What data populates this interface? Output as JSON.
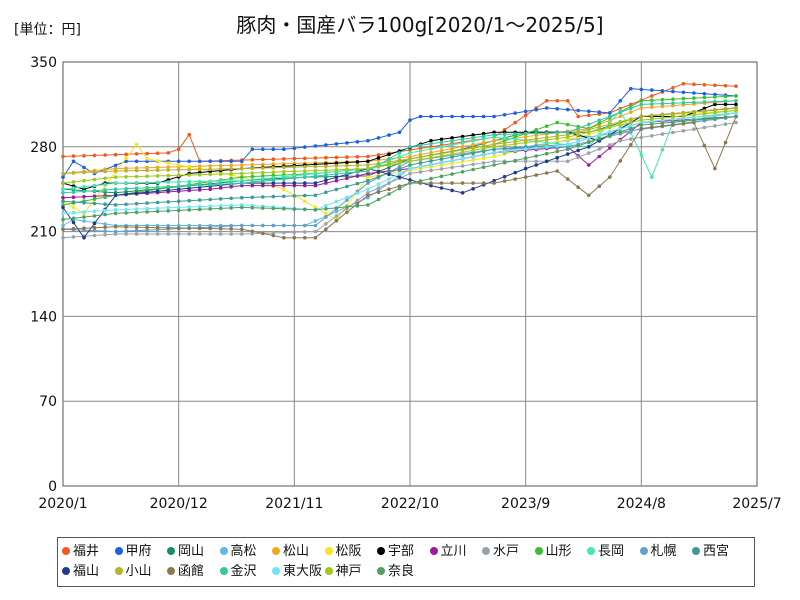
{
  "chart_data": {
    "type": "line",
    "title": "豚肉・国産バラ100g[2020/1～2025/5]",
    "unit_label": "[単位：円]",
    "ylim": [
      0,
      350
    ],
    "yticks": [
      0,
      70,
      140,
      210,
      280,
      350
    ],
    "xlim": [
      "2020-01",
      "2025-07"
    ],
    "xticks": [
      "2020/1",
      "2020/12",
      "2021/11",
      "2022/10",
      "2023/9",
      "2024/8",
      "2025/7"
    ],
    "grid": true,
    "legend_position": "bottom",
    "series": [
      {
        "name": "福井",
        "color": "#f05a1e",
        "points": [
          [
            "2020-01",
            272
          ],
          [
            "2020-11",
            275
          ],
          [
            "2020-12",
            278
          ],
          [
            "2021-01",
            290
          ],
          [
            "2021-02",
            268
          ],
          [
            "2022-06",
            272
          ],
          [
            "2023-06",
            288
          ],
          [
            "2023-11",
            318
          ],
          [
            "2024-01",
            318
          ],
          [
            "2024-02",
            305
          ],
          [
            "2024-05",
            308
          ],
          [
            "2024-09",
            322
          ],
          [
            "2024-12",
            332
          ],
          [
            "2025-05",
            330
          ]
        ]
      },
      {
        "name": "甲府",
        "color": "#1f5fe0",
        "points": [
          [
            "2020-01",
            255
          ],
          [
            "2020-02",
            268
          ],
          [
            "2020-04",
            258
          ],
          [
            "2020-07",
            268
          ],
          [
            "2021-06",
            268
          ],
          [
            "2021-07",
            278
          ],
          [
            "2021-10",
            278
          ],
          [
            "2022-06",
            285
          ],
          [
            "2022-09",
            292
          ],
          [
            "2022-10",
            302
          ],
          [
            "2022-11",
            305
          ],
          [
            "2023-06",
            305
          ],
          [
            "2023-11",
            312
          ],
          [
            "2024-05",
            308
          ],
          [
            "2024-07",
            328
          ],
          [
            "2025-05",
            322
          ]
        ]
      },
      {
        "name": "岡山",
        "color": "#149060",
        "points": [
          [
            "2020-01",
            245
          ],
          [
            "2020-06",
            242
          ],
          [
            "2021-06",
            252
          ],
          [
            "2021-12",
            255
          ],
          [
            "2022-06",
            256
          ],
          [
            "2022-10",
            270
          ],
          [
            "2023-03",
            278
          ],
          [
            "2023-09",
            292
          ],
          [
            "2024-03",
            292
          ],
          [
            "2024-08",
            305
          ],
          [
            "2025-05",
            312
          ]
        ]
      },
      {
        "name": "高松",
        "color": "#62b7e6",
        "points": [
          [
            "2020-01",
            215
          ],
          [
            "2020-02",
            220
          ],
          [
            "2020-06",
            215
          ],
          [
            "2021-02",
            215
          ],
          [
            "2021-12",
            215
          ],
          [
            "2022-06",
            238
          ],
          [
            "2022-10",
            262
          ],
          [
            "2023-09",
            280
          ],
          [
            "2024-06",
            292
          ],
          [
            "2025-05",
            305
          ]
        ]
      },
      {
        "name": "松山",
        "color": "#f5a51e",
        "points": [
          [
            "2020-01",
            258
          ],
          [
            "2020-06",
            262
          ],
          [
            "2021-06",
            265
          ],
          [
            "2022-06",
            268
          ],
          [
            "2022-10",
            272
          ],
          [
            "2023-06",
            285
          ],
          [
            "2024-03",
            295
          ],
          [
            "2024-08",
            312
          ],
          [
            "2025-05",
            318
          ]
        ]
      },
      {
        "name": "松阪",
        "color": "#f5e61e",
        "points": [
          [
            "2020-01",
            235
          ],
          [
            "2020-03",
            225
          ],
          [
            "2020-08",
            282
          ],
          [
            "2020-09",
            270
          ],
          [
            "2021-06",
            255
          ],
          [
            "2021-10",
            245
          ],
          [
            "2022-03",
            220
          ],
          [
            "2022-06",
            255
          ],
          [
            "2023-06",
            272
          ],
          [
            "2024-03",
            290
          ],
          [
            "2024-08",
            305
          ],
          [
            "2025-05",
            310
          ]
        ]
      },
      {
        "name": "宇部",
        "color": "#000000",
        "points": [
          [
            "2020-01",
            250
          ],
          [
            "2020-03",
            245
          ],
          [
            "2020-05",
            250
          ],
          [
            "2020-10",
            250
          ],
          [
            "2021-01",
            258
          ],
          [
            "2021-06",
            262
          ],
          [
            "2022-06",
            268
          ],
          [
            "2022-12",
            285
          ],
          [
            "2023-06",
            292
          ],
          [
            "2024-01",
            292
          ],
          [
            "2024-04",
            285
          ],
          [
            "2024-08",
            305
          ],
          [
            "2024-12",
            305
          ],
          [
            "2025-03",
            315
          ],
          [
            "2025-05",
            315
          ]
        ]
      },
      {
        "name": "立川",
        "color": "#9e1aa0",
        "points": [
          [
            "2020-01",
            238
          ],
          [
            "2020-06",
            240
          ],
          [
            "2021-03",
            245
          ],
          [
            "2021-06",
            248
          ],
          [
            "2022-01",
            248
          ],
          [
            "2022-06",
            258
          ],
          [
            "2022-10",
            262
          ],
          [
            "2023-06",
            275
          ],
          [
            "2024-01",
            280
          ],
          [
            "2024-03",
            265
          ],
          [
            "2024-08",
            300
          ],
          [
            "2025-05",
            305
          ]
        ]
      },
      {
        "name": "水戸",
        "color": "#9aa3ab",
        "points": [
          [
            "2020-01",
            205
          ],
          [
            "2020-06",
            208
          ],
          [
            "2021-06",
            208
          ],
          [
            "2022-01",
            210
          ],
          [
            "2022-06",
            242
          ],
          [
            "2022-10",
            258
          ],
          [
            "2023-06",
            268
          ],
          [
            "2024-01",
            268
          ],
          [
            "2024-06",
            285
          ],
          [
            "2025-05",
            300
          ]
        ]
      },
      {
        "name": "山形",
        "color": "#3cbe32",
        "points": [
          [
            "2020-01",
            232
          ],
          [
            "2020-06",
            240
          ],
          [
            "2021-06",
            255
          ],
          [
            "2022-01",
            258
          ],
          [
            "2022-06",
            262
          ],
          [
            "2022-10",
            270
          ],
          [
            "2023-06",
            282
          ],
          [
            "2023-12",
            300
          ],
          [
            "2024-03",
            295
          ],
          [
            "2024-08",
            318
          ],
          [
            "2025-05",
            322
          ]
        ]
      },
      {
        "name": "長岡",
        "color": "#46e6b4",
        "points": [
          [
            "2020-01",
            245
          ],
          [
            "2020-06",
            250
          ],
          [
            "2021-06",
            252
          ],
          [
            "2022-06",
            262
          ],
          [
            "2022-10",
            275
          ],
          [
            "2023-06",
            288
          ],
          [
            "2024-03",
            280
          ],
          [
            "2024-06",
            310
          ],
          [
            "2024-09",
            255
          ],
          [
            "2024-11",
            300
          ],
          [
            "2025-05",
            308
          ]
        ]
      },
      {
        "name": "札幌",
        "color": "#64a0c8",
        "points": [
          [
            "2020-01",
            212
          ],
          [
            "2020-06",
            210
          ],
          [
            "2021-06",
            215
          ],
          [
            "2022-01",
            215
          ],
          [
            "2022-06",
            250
          ],
          [
            "2022-10",
            268
          ],
          [
            "2023-06",
            278
          ],
          [
            "2024-01",
            280
          ],
          [
            "2024-08",
            295
          ],
          [
            "2025-05",
            305
          ]
        ]
      },
      {
        "name": "西宮",
        "color": "#3c9b96",
        "points": [
          [
            "2020-01",
            235
          ],
          [
            "2020-06",
            232
          ],
          [
            "2021-06",
            238
          ],
          [
            "2022-01",
            240
          ],
          [
            "2022-06",
            252
          ],
          [
            "2022-10",
            265
          ],
          [
            "2023-06",
            278
          ],
          [
            "2024-01",
            282
          ],
          [
            "2024-08",
            300
          ],
          [
            "2025-05",
            308
          ]
        ]
      },
      {
        "name": "福山",
        "color": "#1e3c8c",
        "points": [
          [
            "2020-01",
            230
          ],
          [
            "2020-03",
            205
          ],
          [
            "2020-06",
            240
          ],
          [
            "2021-06",
            250
          ],
          [
            "2022-01",
            250
          ],
          [
            "2022-06",
            262
          ],
          [
            "2022-12",
            248
          ],
          [
            "2023-03",
            242
          ],
          [
            "2023-09",
            262
          ],
          [
            "2024-03",
            280
          ],
          [
            "2024-08",
            305
          ],
          [
            "2025-05",
            312
          ]
        ]
      },
      {
        "name": "小山",
        "color": "#b4b42d",
        "points": [
          [
            "2020-01",
            258
          ],
          [
            "2020-06",
            260
          ],
          [
            "2021-06",
            262
          ],
          [
            "2022-06",
            265
          ],
          [
            "2022-10",
            270
          ],
          [
            "2023-06",
            282
          ],
          [
            "2024-01",
            290
          ],
          [
            "2024-08",
            305
          ],
          [
            "2025-05",
            312
          ]
        ]
      },
      {
        "name": "函館",
        "color": "#8c7850",
        "points": [
          [
            "2020-01",
            212
          ],
          [
            "2020-06",
            214
          ],
          [
            "2021-06",
            212
          ],
          [
            "2021-10",
            205
          ],
          [
            "2022-01",
            205
          ],
          [
            "2022-06",
            240
          ],
          [
            "2022-10",
            250
          ],
          [
            "2023-06",
            250
          ],
          [
            "2023-12",
            260
          ],
          [
            "2024-03",
            240
          ],
          [
            "2024-05",
            255
          ],
          [
            "2024-08",
            295
          ],
          [
            "2025-01",
            300
          ],
          [
            "2025-03",
            262
          ],
          [
            "2025-05",
            305
          ]
        ]
      },
      {
        "name": "金沢",
        "color": "#32c8a0",
        "points": [
          [
            "2020-01",
            242
          ],
          [
            "2020-06",
            245
          ],
          [
            "2021-06",
            250
          ],
          [
            "2022-06",
            260
          ],
          [
            "2022-10",
            280
          ],
          [
            "2023-06",
            290
          ],
          [
            "2024-01",
            292
          ],
          [
            "2024-08",
            315
          ],
          [
            "2025-05",
            318
          ]
        ]
      },
      {
        "name": "東大阪",
        "color": "#6ee6f5",
        "points": [
          [
            "2020-01",
            225
          ],
          [
            "2020-06",
            228
          ],
          [
            "2021-06",
            232
          ],
          [
            "2022-01",
            228
          ],
          [
            "2022-06",
            245
          ],
          [
            "2022-10",
            262
          ],
          [
            "2023-06",
            275
          ],
          [
            "2024-01",
            282
          ],
          [
            "2024-08",
            300
          ],
          [
            "2025-05",
            308
          ]
        ]
      },
      {
        "name": "神戸",
        "color": "#a0c81e",
        "points": [
          [
            "2020-01",
            250
          ],
          [
            "2020-06",
            255
          ],
          [
            "2021-06",
            258
          ],
          [
            "2022-06",
            262
          ],
          [
            "2022-10",
            268
          ],
          [
            "2023-06",
            280
          ],
          [
            "2024-01",
            288
          ],
          [
            "2024-08",
            302
          ],
          [
            "2025-05",
            310
          ]
        ]
      },
      {
        "name": "奈良",
        "color": "#50a064",
        "points": [
          [
            "2020-01",
            220
          ],
          [
            "2020-06",
            225
          ],
          [
            "2021-06",
            230
          ],
          [
            "2022-01",
            228
          ],
          [
            "2022-06",
            232
          ],
          [
            "2022-10",
            250
          ],
          [
            "2023-06",
            265
          ],
          [
            "2024-01",
            278
          ],
          [
            "2024-08",
            298
          ],
          [
            "2025-05",
            305
          ]
        ]
      }
    ]
  }
}
